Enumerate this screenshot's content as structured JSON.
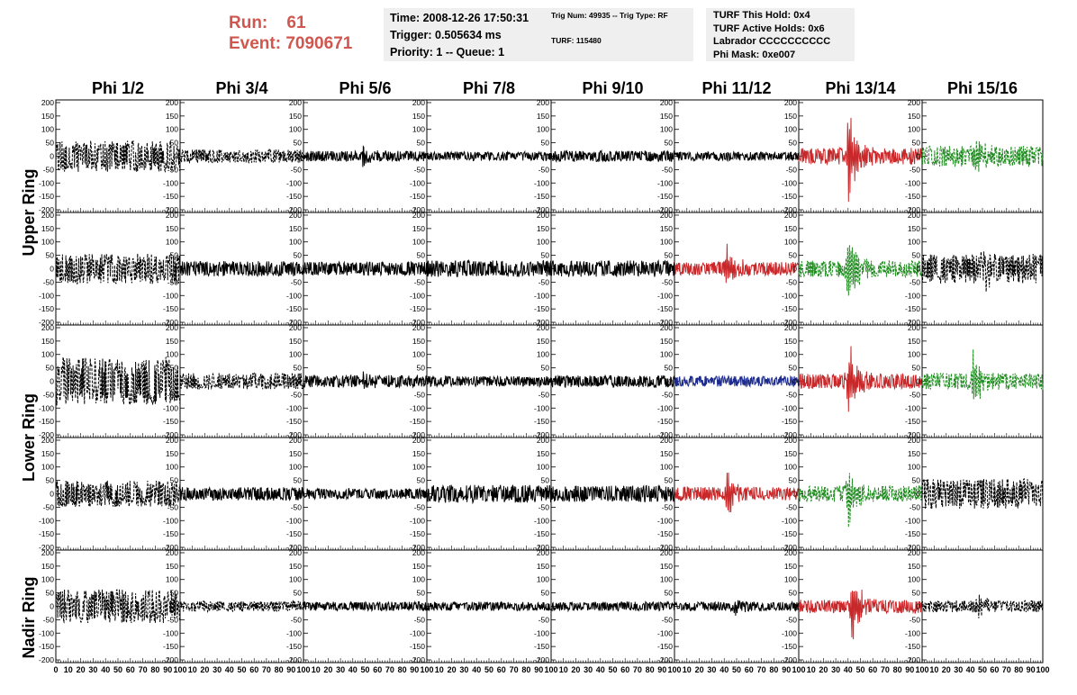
{
  "header": {
    "run_label": "Run:",
    "run_value": "61",
    "event_label": "Event:",
    "event_value": "7090671",
    "time": "Time: 2008-12-26 17:50:31",
    "trigger": "Trigger: 0.505634 ms",
    "priority": "Priority: 1 -- Queue: 1",
    "trig_num": "Trig Num: 49935 -- Trig Type: RF",
    "turf": "TURF: 115480",
    "turf_this_hold": "TURF This Hold: 0x4",
    "turf_active_holds": "TURF Active Holds: 0x6",
    "labrador": "Labrador CCCCCCCCCC",
    "phi_mask": "Phi Mask: 0xe007"
  },
  "chart_data": {
    "type": "line",
    "columns": [
      "Phi 1/2",
      "Phi 3/4",
      "Phi 5/6",
      "Phi 7/8",
      "Phi 9/10",
      "Phi 11/12",
      "Phi 13/14",
      "Phi 15/16"
    ],
    "ring_labels": [
      "Upper Ring",
      "Lower Ring",
      "Nadir Ring"
    ],
    "xlim": [
      0,
      100
    ],
    "ylim": [
      -210,
      210
    ],
    "yticks": [
      -200,
      -150,
      -100,
      -50,
      0,
      50,
      100,
      150,
      200
    ],
    "xticks": [
      0,
      10,
      20,
      30,
      40,
      50,
      60,
      70,
      80,
      90,
      100
    ],
    "colors": {
      "black": "#000000",
      "red": "#c8282a",
      "green": "#1f8a1f",
      "blue": "#1c2b8c"
    },
    "rows": [
      [
        {
          "color": "black",
          "dashed": true,
          "amp": 42,
          "burst": 0,
          "burst_amp": 0
        },
        {
          "color": "black",
          "dashed": true,
          "amp": 18,
          "burst": 0,
          "burst_amp": 0
        },
        {
          "color": "black",
          "dashed": false,
          "amp": 14,
          "burst": 48,
          "burst_amp": 35
        },
        {
          "color": "black",
          "dashed": false,
          "amp": 12,
          "burst": 0,
          "burst_amp": 0
        },
        {
          "color": "black",
          "dashed": false,
          "amp": 14,
          "burst": 0,
          "burst_amp": 0
        },
        {
          "color": "black",
          "dashed": false,
          "amp": 12,
          "burst": 0,
          "burst_amp": 0
        },
        {
          "color": "red",
          "dashed": false,
          "amp": 22,
          "burst": 40,
          "burst_amp": 200
        },
        {
          "color": "green",
          "dashed": true,
          "amp": 28,
          "burst": 45,
          "burst_amp": 80
        }
      ],
      [
        {
          "color": "black",
          "dashed": true,
          "amp": 40,
          "burst": 0,
          "burst_amp": 0
        },
        {
          "color": "black",
          "dashed": false,
          "amp": 20,
          "burst": 0,
          "burst_amp": 0
        },
        {
          "color": "black",
          "dashed": false,
          "amp": 18,
          "burst": 0,
          "burst_amp": 0
        },
        {
          "color": "black",
          "dashed": false,
          "amp": 22,
          "burst": 0,
          "burst_amp": 0
        },
        {
          "color": "black",
          "dashed": false,
          "amp": 22,
          "burst": 0,
          "burst_amp": 0
        },
        {
          "color": "red",
          "dashed": false,
          "amp": 18,
          "burst": 42,
          "burst_amp": 95
        },
        {
          "color": "green",
          "dashed": true,
          "amp": 22,
          "burst": 40,
          "burst_amp": 170
        },
        {
          "color": "black",
          "dashed": true,
          "amp": 40,
          "burst": 50,
          "burst_amp": 60
        }
      ],
      [
        {
          "color": "black",
          "dashed": true,
          "amp": 65,
          "burst": 0,
          "burst_amp": 0
        },
        {
          "color": "black",
          "dashed": true,
          "amp": 22,
          "burst": 0,
          "burst_amp": 0
        },
        {
          "color": "black",
          "dashed": false,
          "amp": 16,
          "burst": 47,
          "burst_amp": 40
        },
        {
          "color": "black",
          "dashed": false,
          "amp": 14,
          "burst": 0,
          "burst_amp": 0
        },
        {
          "color": "black",
          "dashed": false,
          "amp": 16,
          "burst": 0,
          "burst_amp": 0
        },
        {
          "color": "blue",
          "dashed": false,
          "amp": 14,
          "burst": 0,
          "burst_amp": 0
        },
        {
          "color": "red",
          "dashed": false,
          "amp": 20,
          "burst": 40,
          "burst_amp": 180
        },
        {
          "color": "green",
          "dashed": true,
          "amp": 22,
          "burst": 42,
          "burst_amp": 120
        }
      ],
      [
        {
          "color": "black",
          "dashed": true,
          "amp": 35,
          "burst": 0,
          "burst_amp": 0
        },
        {
          "color": "black",
          "dashed": false,
          "amp": 18,
          "burst": 0,
          "burst_amp": 0
        },
        {
          "color": "black",
          "dashed": false,
          "amp": 14,
          "burst": 0,
          "burst_amp": 0
        },
        {
          "color": "black",
          "dashed": false,
          "amp": 24,
          "burst": 0,
          "burst_amp": 0
        },
        {
          "color": "black",
          "dashed": false,
          "amp": 22,
          "burst": 0,
          "burst_amp": 0
        },
        {
          "color": "red",
          "dashed": false,
          "amp": 18,
          "burst": 42,
          "burst_amp": 90
        },
        {
          "color": "green",
          "dashed": true,
          "amp": 22,
          "burst": 40,
          "burst_amp": 160
        },
        {
          "color": "black",
          "dashed": true,
          "amp": 40,
          "burst": 0,
          "burst_amp": 0
        }
      ],
      [
        {
          "color": "black",
          "dashed": true,
          "amp": 45,
          "burst": 0,
          "burst_amp": 0
        },
        {
          "color": "black",
          "dashed": true,
          "amp": 14,
          "burst": 0,
          "burst_amp": 0
        },
        {
          "color": "black",
          "dashed": false,
          "amp": 12,
          "burst": 0,
          "burst_amp": 0
        },
        {
          "color": "black",
          "dashed": false,
          "amp": 12,
          "burst": 0,
          "burst_amp": 0
        },
        {
          "color": "black",
          "dashed": false,
          "amp": 12,
          "burst": 0,
          "burst_amp": 0
        },
        {
          "color": "black",
          "dashed": false,
          "amp": 12,
          "burst": 48,
          "burst_amp": 30
        },
        {
          "color": "red",
          "dashed": false,
          "amp": 18,
          "burst": 43,
          "burst_amp": 160
        },
        {
          "color": "black",
          "dashed": true,
          "amp": 16,
          "burst": 47,
          "burst_amp": 60
        }
      ]
    ]
  }
}
